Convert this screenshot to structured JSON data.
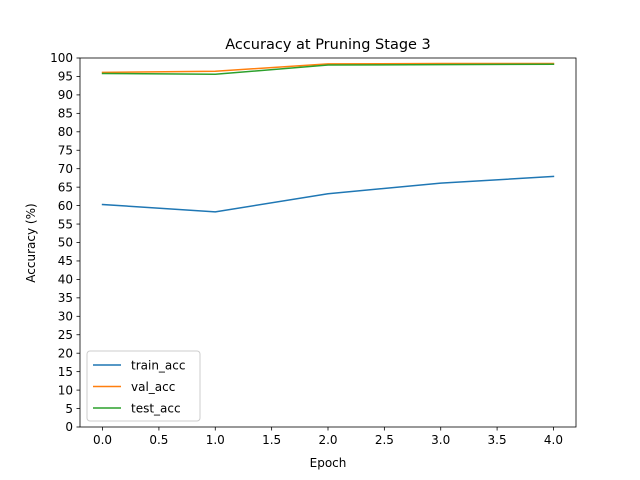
{
  "chart_data": {
    "type": "line",
    "title": "Accuracy at Pruning Stage 3",
    "xlabel": "Epoch",
    "ylabel": "Accuracy (%)",
    "x": [
      0,
      1,
      2,
      3,
      4
    ],
    "xlim": [
      -0.2,
      4.2
    ],
    "ylim": [
      0,
      100
    ],
    "xticks": [
      0.0,
      0.5,
      1.0,
      1.5,
      2.0,
      2.5,
      3.0,
      3.5,
      4.0
    ],
    "xtick_labels": [
      "0.0",
      "0.5",
      "1.0",
      "1.5",
      "2.0",
      "2.5",
      "3.0",
      "3.5",
      "4.0"
    ],
    "yticks": [
      0,
      5,
      10,
      15,
      20,
      25,
      30,
      35,
      40,
      45,
      50,
      55,
      60,
      65,
      70,
      75,
      80,
      85,
      90,
      95,
      100
    ],
    "ytick_labels": [
      "0",
      "5",
      "10",
      "15",
      "20",
      "25",
      "30",
      "35",
      "40",
      "45",
      "50",
      "55",
      "60",
      "65",
      "70",
      "75",
      "80",
      "85",
      "90",
      "95",
      "100"
    ],
    "grid": false,
    "legend_position": "lower-left",
    "series": [
      {
        "name": "train_acc",
        "color": "#1f77b4",
        "values": [
          60.3,
          58.3,
          63.2,
          66.1,
          67.9
        ]
      },
      {
        "name": "val_acc",
        "color": "#ff7f0e",
        "values": [
          96.1,
          96.4,
          98.4,
          98.5,
          98.5
        ]
      },
      {
        "name": "test_acc",
        "color": "#2ca02c",
        "values": [
          95.8,
          95.6,
          98.1,
          98.2,
          98.3
        ]
      }
    ]
  }
}
